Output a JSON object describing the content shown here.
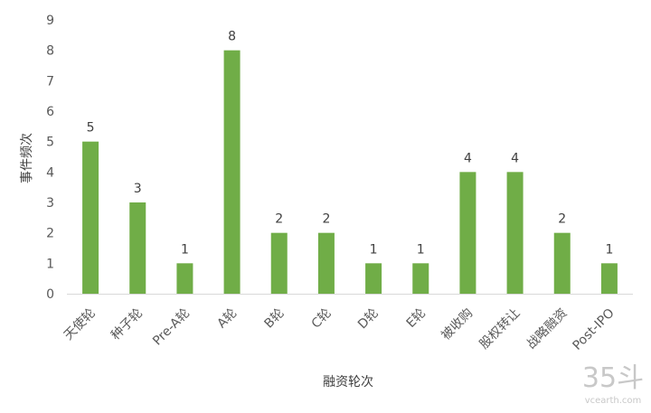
{
  "chart_data": {
    "type": "bar",
    "categories": [
      "天使轮",
      "种子轮",
      "Pre-A轮",
      "A轮",
      "B轮",
      "C轮",
      "D轮",
      "E轮",
      "被收购",
      "股权转让",
      "战略融资",
      "Post-IPO"
    ],
    "values": [
      5,
      3,
      1,
      8,
      2,
      2,
      1,
      1,
      4,
      4,
      2,
      1
    ],
    "xlabel": "融资轮次",
    "ylabel": "事件频次",
    "ylim": [
      0,
      9
    ],
    "yticks": [
      0,
      1,
      2,
      3,
      4,
      5,
      6,
      7,
      8,
      9
    ],
    "bar_color": "#70ad47",
    "grid": false,
    "legend": "none"
  },
  "watermark": {
    "text": "35斗",
    "subtext": "vcearth.com"
  }
}
